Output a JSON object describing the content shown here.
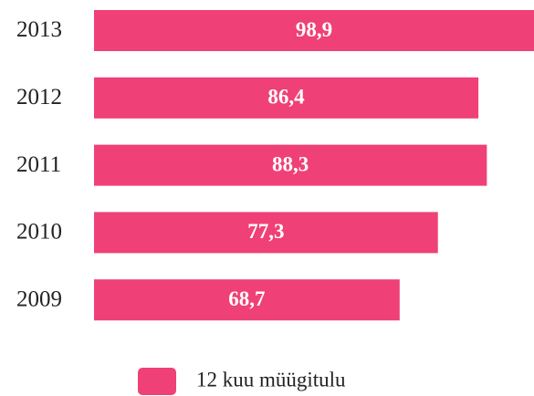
{
  "chart_data": {
    "type": "bar",
    "orientation": "horizontal",
    "categories": [
      "2013",
      "2012",
      "2011",
      "2010",
      "2009"
    ],
    "series": [
      {
        "name": "12 kuu müügitulu",
        "color": "#f04078",
        "values": [
          98.9,
          86.4,
          88.3,
          77.3,
          68.7
        ],
        "value_labels": [
          "98,9",
          "86,4",
          "88,3",
          "77,3",
          "68,7"
        ]
      }
    ],
    "legend": "bottom"
  }
}
